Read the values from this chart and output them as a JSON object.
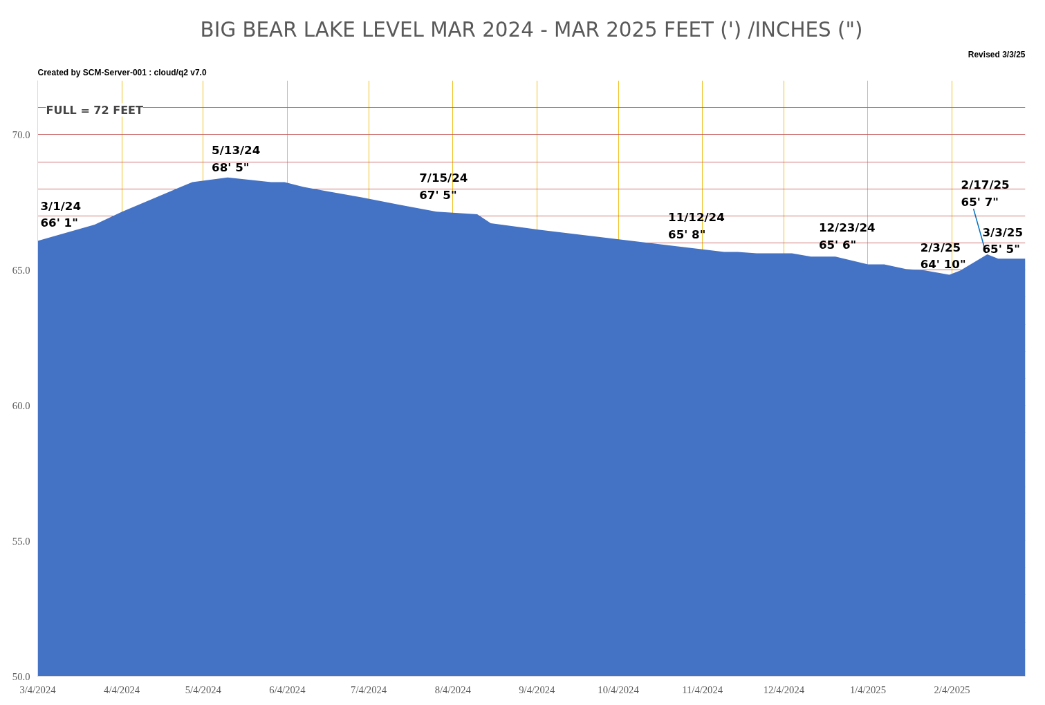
{
  "chart_data": {
    "type": "area",
    "title": "BIG BEAR LAKE LEVEL MAR 2024 - MAR 2025 FEET (') /INCHES (\")",
    "x": [
      "2024-03-04",
      "2024-03-10",
      "2024-03-25",
      "2024-04-04",
      "2024-04-30",
      "2024-05-13",
      "2024-05-29",
      "2024-06-03",
      "2024-06-10",
      "2024-06-18",
      "2024-07-01",
      "2024-07-15",
      "2024-07-29",
      "2024-08-13",
      "2024-08-18",
      "2024-09-05",
      "2024-10-27",
      "2024-11-12",
      "2024-11-17",
      "2024-11-24",
      "2024-12-07",
      "2024-12-14",
      "2024-12-23",
      "2025-01-04",
      "2025-01-10",
      "2025-01-18",
      "2025-01-25",
      "2025-02-03",
      "2025-02-07",
      "2025-02-17",
      "2025-02-21",
      "2025-02-28",
      "2025-03-03"
    ],
    "series": [
      {
        "color": "#4472c4",
        "values": [
          66.08,
          66.25,
          66.68,
          67.15,
          68.25,
          68.42,
          68.25,
          68.25,
          68.07,
          67.92,
          67.69,
          67.42,
          67.16,
          67.06,
          66.73,
          66.49,
          65.86,
          65.67,
          65.67,
          65.62,
          65.62,
          65.5,
          65.5,
          65.21,
          65.21,
          65.04,
          64.99,
          64.83,
          64.98,
          65.58,
          65.42,
          65.42,
          65.42
        ]
      }
    ],
    "xlim": [
      "2024-03-04",
      "2025-03-03"
    ],
    "xticks": [
      {
        "value": "2024-03-04",
        "label": "3/4/2024"
      },
      {
        "value": "2024-04-04",
        "label": "4/4/2024"
      },
      {
        "value": "2024-05-04",
        "label": "5/4/2024"
      },
      {
        "value": "2024-06-04",
        "label": "6/4/2024"
      },
      {
        "value": "2024-07-04",
        "label": "7/4/2024"
      },
      {
        "value": "2024-08-04",
        "label": "8/4/2024"
      },
      {
        "value": "2024-09-04",
        "label": "9/4/2024"
      },
      {
        "value": "2024-10-04",
        "label": "10/4/2024"
      },
      {
        "value": "2024-11-04",
        "label": "11/4/2024"
      },
      {
        "value": "2024-12-04",
        "label": "12/4/2024"
      },
      {
        "value": "2025-01-04",
        "label": "1/4/2025"
      },
      {
        "value": "2025-02-04",
        "label": "2/4/2025"
      }
    ],
    "ylim": [
      50,
      72
    ],
    "yticks": [
      {
        "value": 50,
        "label": "50.0"
      },
      {
        "value": 51,
        "label": null
      },
      {
        "value": 52,
        "label": null
      },
      {
        "value": 53,
        "label": null
      },
      {
        "value": 54,
        "label": null
      },
      {
        "value": 55,
        "label": "55.0"
      },
      {
        "value": 56,
        "label": null
      },
      {
        "value": 57,
        "label": null
      },
      {
        "value": 58,
        "label": null
      },
      {
        "value": 59,
        "label": null
      },
      {
        "value": 60,
        "label": "60.0"
      },
      {
        "value": 61,
        "label": null
      },
      {
        "value": 62,
        "label": null
      },
      {
        "value": 63,
        "label": null
      },
      {
        "value": 64,
        "label": null
      },
      {
        "value": 65,
        "label": "65.0"
      },
      {
        "value": 66,
        "label": null
      },
      {
        "value": 67,
        "label": null
      },
      {
        "value": 68,
        "label": null
      },
      {
        "value": 69,
        "label": null
      },
      {
        "value": 70,
        "label": "70.0"
      },
      {
        "value": 71,
        "label": null
      }
    ],
    "grid": true,
    "annotations": [
      "Created by SCM-Server-001 : cloud/q2 v7.0",
      "Revised 3/3/25",
      "FULL = 72 FEET",
      {
        "text": "3/1/24\n66' 1\"",
        "x": "2024-03-04",
        "y": 66.08
      },
      {
        "text": "5/13/24\n68' 5\"",
        "x": "2024-05-13",
        "y": 68.42
      },
      {
        "text": "7/15/24\n67' 5\"",
        "x": "2024-07-15",
        "y": 67.42
      },
      {
        "text": "11/12/24\n65' 8\"",
        "x": "2024-11-12",
        "y": 65.67
      },
      {
        "text": "12/23/24\n65' 6\"",
        "x": "2024-12-23",
        "y": 65.5
      },
      {
        "text": "2/3/25\n64' 10\"",
        "x": "2025-02-03",
        "y": 64.83
      },
      {
        "text": "2/17/25\n65' 7\"",
        "x": "2025-02-17",
        "y": 65.58
      },
      {
        "text": "3/3/25\n65' 5\"",
        "x": "2025-03-03",
        "y": 65.42
      }
    ]
  }
}
